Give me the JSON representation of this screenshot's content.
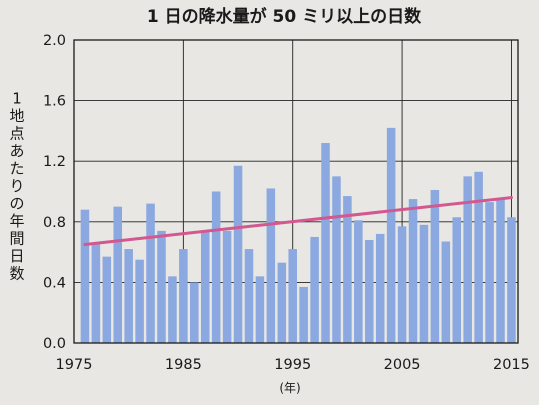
{
  "chart_data": {
    "type": "bar",
    "title": "1 日の降水量が 50 ミリ以上の日数",
    "ylabel": "1地点あたりの年間日数",
    "xlabel": "(年)",
    "x": [
      1976,
      1977,
      1978,
      1979,
      1980,
      1981,
      1982,
      1983,
      1984,
      1985,
      1986,
      1987,
      1988,
      1989,
      1990,
      1991,
      1992,
      1993,
      1994,
      1995,
      1996,
      1997,
      1998,
      1999,
      2000,
      2001,
      2002,
      2003,
      2004,
      2005,
      2006,
      2007,
      2008,
      2009,
      2010,
      2011,
      2012,
      2013,
      2014,
      2015
    ],
    "values": [
      0.88,
      0.66,
      0.57,
      0.9,
      0.62,
      0.55,
      0.92,
      0.74,
      0.44,
      0.62,
      0.4,
      0.74,
      1.0,
      0.74,
      1.17,
      0.62,
      0.44,
      1.02,
      0.53,
      0.62,
      0.37,
      0.7,
      1.32,
      1.1,
      0.97,
      0.81,
      0.68,
      0.72,
      1.42,
      0.77,
      0.95,
      0.78,
      1.01,
      0.67,
      0.83,
      1.1,
      1.13,
      0.93,
      0.95,
      0.83
    ],
    "trend": {
      "start": [
        1976,
        0.65
      ],
      "end": [
        2015,
        0.96
      ],
      "color": "#d2588f"
    },
    "ylim": [
      0,
      2.0
    ],
    "xlim": [
      1975,
      2015.6
    ],
    "yticks": [
      0.0,
      0.4,
      0.8,
      1.2,
      1.6,
      2.0
    ],
    "ytick_labels": [
      "0.0",
      "0.4",
      "0.8",
      "1.2",
      "1.6",
      "2.0"
    ],
    "xticks": [
      1975,
      1985,
      1995,
      2005,
      2015
    ],
    "grid": true,
    "colors": {
      "bar": "#8ba9e0",
      "grid": "#222222",
      "background": "#e8e7e3"
    }
  }
}
